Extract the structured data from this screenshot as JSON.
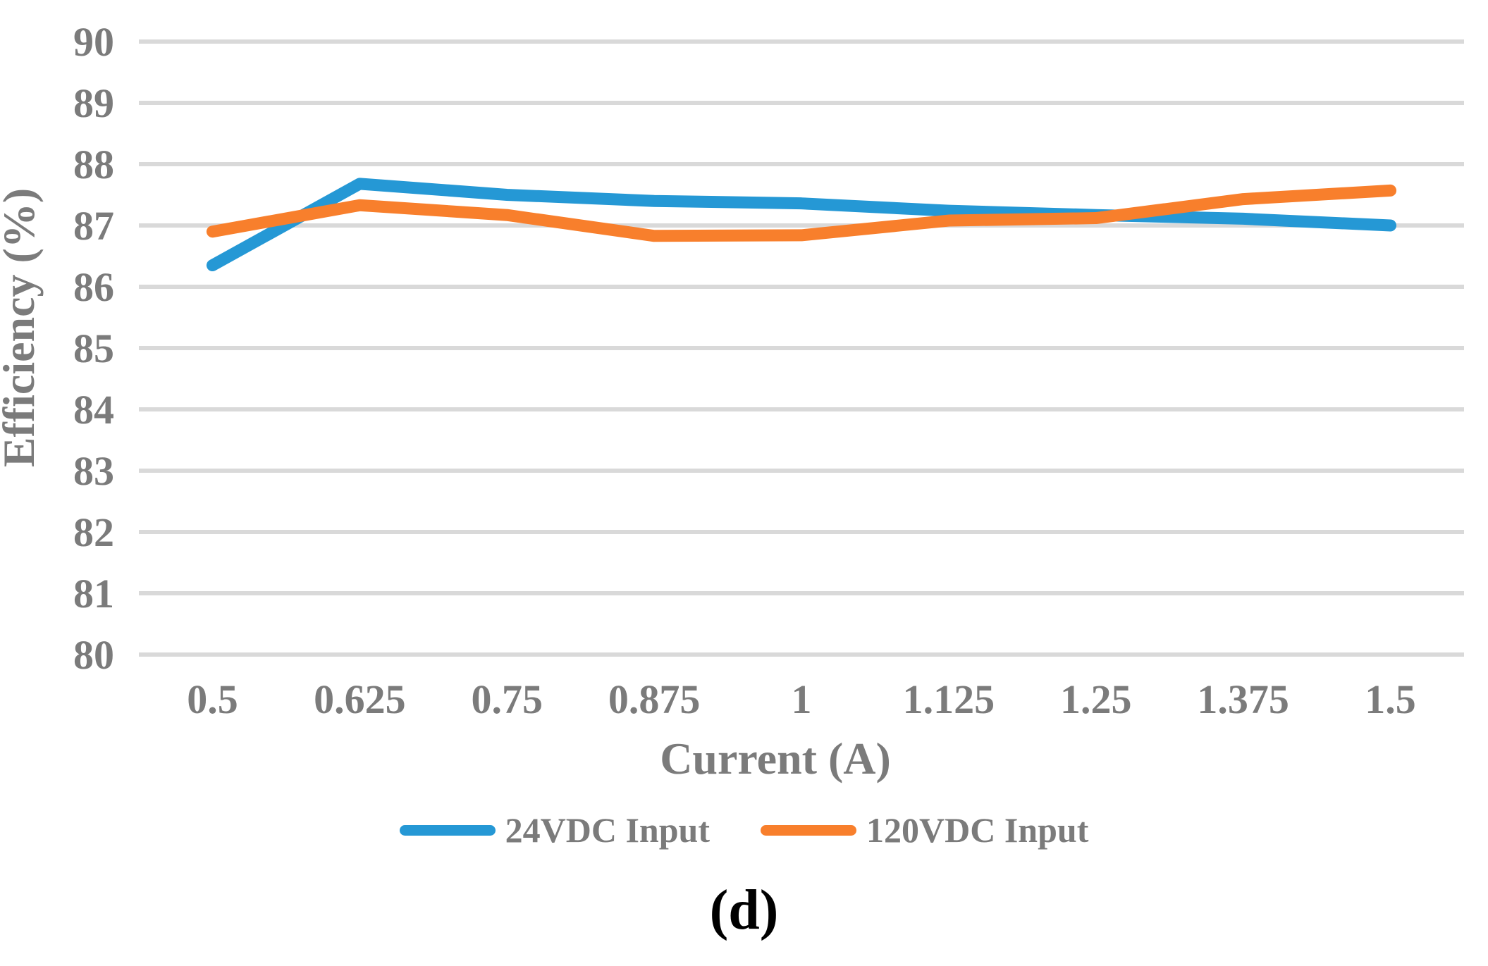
{
  "figure": {
    "caption": "(d)"
  },
  "chart_data": {
    "type": "line",
    "title": "",
    "xlabel": "Current (A)",
    "ylabel": "Efficiency (%)",
    "x_categories": [
      "0.5",
      "0.625",
      "0.75",
      "0.875",
      "1",
      "1.125",
      "1.25",
      "1.375",
      "1.5"
    ],
    "y_ticks": [
      80,
      81,
      82,
      83,
      84,
      85,
      86,
      87,
      88,
      89,
      90
    ],
    "ylim": [
      80,
      90
    ],
    "grid": "horizontal-only",
    "legend_position": "bottom",
    "series": [
      {
        "name": "24VDC Input",
        "color": "#2598D5",
        "values": [
          86.35,
          87.68,
          87.5,
          87.4,
          87.36,
          87.24,
          87.17,
          87.11,
          87.0
        ]
      },
      {
        "name": "120VDC Input",
        "color": "#F87F2C",
        "values": [
          86.9,
          87.33,
          87.17,
          86.83,
          86.84,
          87.08,
          87.12,
          87.43,
          87.57
        ]
      }
    ],
    "colors": {
      "gridline": "#D9D9D9",
      "axis_text": "#7B7B7B",
      "caption_text": "#000000"
    }
  }
}
